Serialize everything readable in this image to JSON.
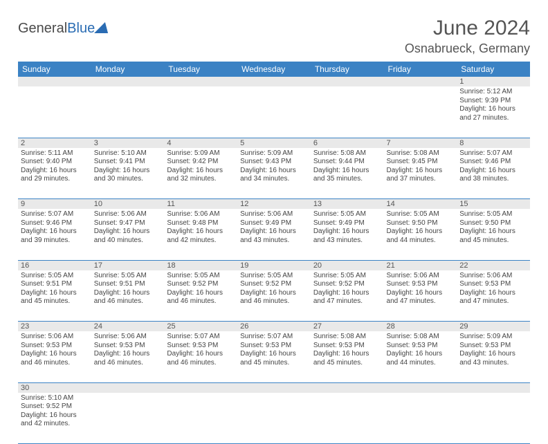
{
  "brand": {
    "name_part1": "General",
    "name_part2": "Blue"
  },
  "colors": {
    "header_bg": "#3b82c4",
    "header_fg": "#ffffff",
    "daynum_bg": "#e9e9e9",
    "border": "#3b82c4",
    "text": "#444444",
    "title": "#555555",
    "brand_blue": "#2a6cb3"
  },
  "title": "June 2024",
  "location": "Osnabrueck, Germany",
  "weekdays": [
    "Sunday",
    "Monday",
    "Tuesday",
    "Wednesday",
    "Thursday",
    "Friday",
    "Saturday"
  ],
  "first_weekday_index": 6,
  "days": [
    {
      "n": 1,
      "sunrise": "5:12 AM",
      "sunset": "9:39 PM",
      "daylight": "16 hours and 27 minutes."
    },
    {
      "n": 2,
      "sunrise": "5:11 AM",
      "sunset": "9:40 PM",
      "daylight": "16 hours and 29 minutes."
    },
    {
      "n": 3,
      "sunrise": "5:10 AM",
      "sunset": "9:41 PM",
      "daylight": "16 hours and 30 minutes."
    },
    {
      "n": 4,
      "sunrise": "5:09 AM",
      "sunset": "9:42 PM",
      "daylight": "16 hours and 32 minutes."
    },
    {
      "n": 5,
      "sunrise": "5:09 AM",
      "sunset": "9:43 PM",
      "daylight": "16 hours and 34 minutes."
    },
    {
      "n": 6,
      "sunrise": "5:08 AM",
      "sunset": "9:44 PM",
      "daylight": "16 hours and 35 minutes."
    },
    {
      "n": 7,
      "sunrise": "5:08 AM",
      "sunset": "9:45 PM",
      "daylight": "16 hours and 37 minutes."
    },
    {
      "n": 8,
      "sunrise": "5:07 AM",
      "sunset": "9:46 PM",
      "daylight": "16 hours and 38 minutes."
    },
    {
      "n": 9,
      "sunrise": "5:07 AM",
      "sunset": "9:46 PM",
      "daylight": "16 hours and 39 minutes."
    },
    {
      "n": 10,
      "sunrise": "5:06 AM",
      "sunset": "9:47 PM",
      "daylight": "16 hours and 40 minutes."
    },
    {
      "n": 11,
      "sunrise": "5:06 AM",
      "sunset": "9:48 PM",
      "daylight": "16 hours and 42 minutes."
    },
    {
      "n": 12,
      "sunrise": "5:06 AM",
      "sunset": "9:49 PM",
      "daylight": "16 hours and 43 minutes."
    },
    {
      "n": 13,
      "sunrise": "5:05 AM",
      "sunset": "9:49 PM",
      "daylight": "16 hours and 43 minutes."
    },
    {
      "n": 14,
      "sunrise": "5:05 AM",
      "sunset": "9:50 PM",
      "daylight": "16 hours and 44 minutes."
    },
    {
      "n": 15,
      "sunrise": "5:05 AM",
      "sunset": "9:50 PM",
      "daylight": "16 hours and 45 minutes."
    },
    {
      "n": 16,
      "sunrise": "5:05 AM",
      "sunset": "9:51 PM",
      "daylight": "16 hours and 45 minutes."
    },
    {
      "n": 17,
      "sunrise": "5:05 AM",
      "sunset": "9:51 PM",
      "daylight": "16 hours and 46 minutes."
    },
    {
      "n": 18,
      "sunrise": "5:05 AM",
      "sunset": "9:52 PM",
      "daylight": "16 hours and 46 minutes."
    },
    {
      "n": 19,
      "sunrise": "5:05 AM",
      "sunset": "9:52 PM",
      "daylight": "16 hours and 46 minutes."
    },
    {
      "n": 20,
      "sunrise": "5:05 AM",
      "sunset": "9:52 PM",
      "daylight": "16 hours and 47 minutes."
    },
    {
      "n": 21,
      "sunrise": "5:06 AM",
      "sunset": "9:53 PM",
      "daylight": "16 hours and 47 minutes."
    },
    {
      "n": 22,
      "sunrise": "5:06 AM",
      "sunset": "9:53 PM",
      "daylight": "16 hours and 47 minutes."
    },
    {
      "n": 23,
      "sunrise": "5:06 AM",
      "sunset": "9:53 PM",
      "daylight": "16 hours and 46 minutes."
    },
    {
      "n": 24,
      "sunrise": "5:06 AM",
      "sunset": "9:53 PM",
      "daylight": "16 hours and 46 minutes."
    },
    {
      "n": 25,
      "sunrise": "5:07 AM",
      "sunset": "9:53 PM",
      "daylight": "16 hours and 46 minutes."
    },
    {
      "n": 26,
      "sunrise": "5:07 AM",
      "sunset": "9:53 PM",
      "daylight": "16 hours and 45 minutes."
    },
    {
      "n": 27,
      "sunrise": "5:08 AM",
      "sunset": "9:53 PM",
      "daylight": "16 hours and 45 minutes."
    },
    {
      "n": 28,
      "sunrise": "5:08 AM",
      "sunset": "9:53 PM",
      "daylight": "16 hours and 44 minutes."
    },
    {
      "n": 29,
      "sunrise": "5:09 AM",
      "sunset": "9:53 PM",
      "daylight": "16 hours and 43 minutes."
    },
    {
      "n": 30,
      "sunrise": "5:10 AM",
      "sunset": "9:52 PM",
      "daylight": "16 hours and 42 minutes."
    }
  ],
  "labels": {
    "sunrise": "Sunrise:",
    "sunset": "Sunset:",
    "daylight": "Daylight:"
  }
}
